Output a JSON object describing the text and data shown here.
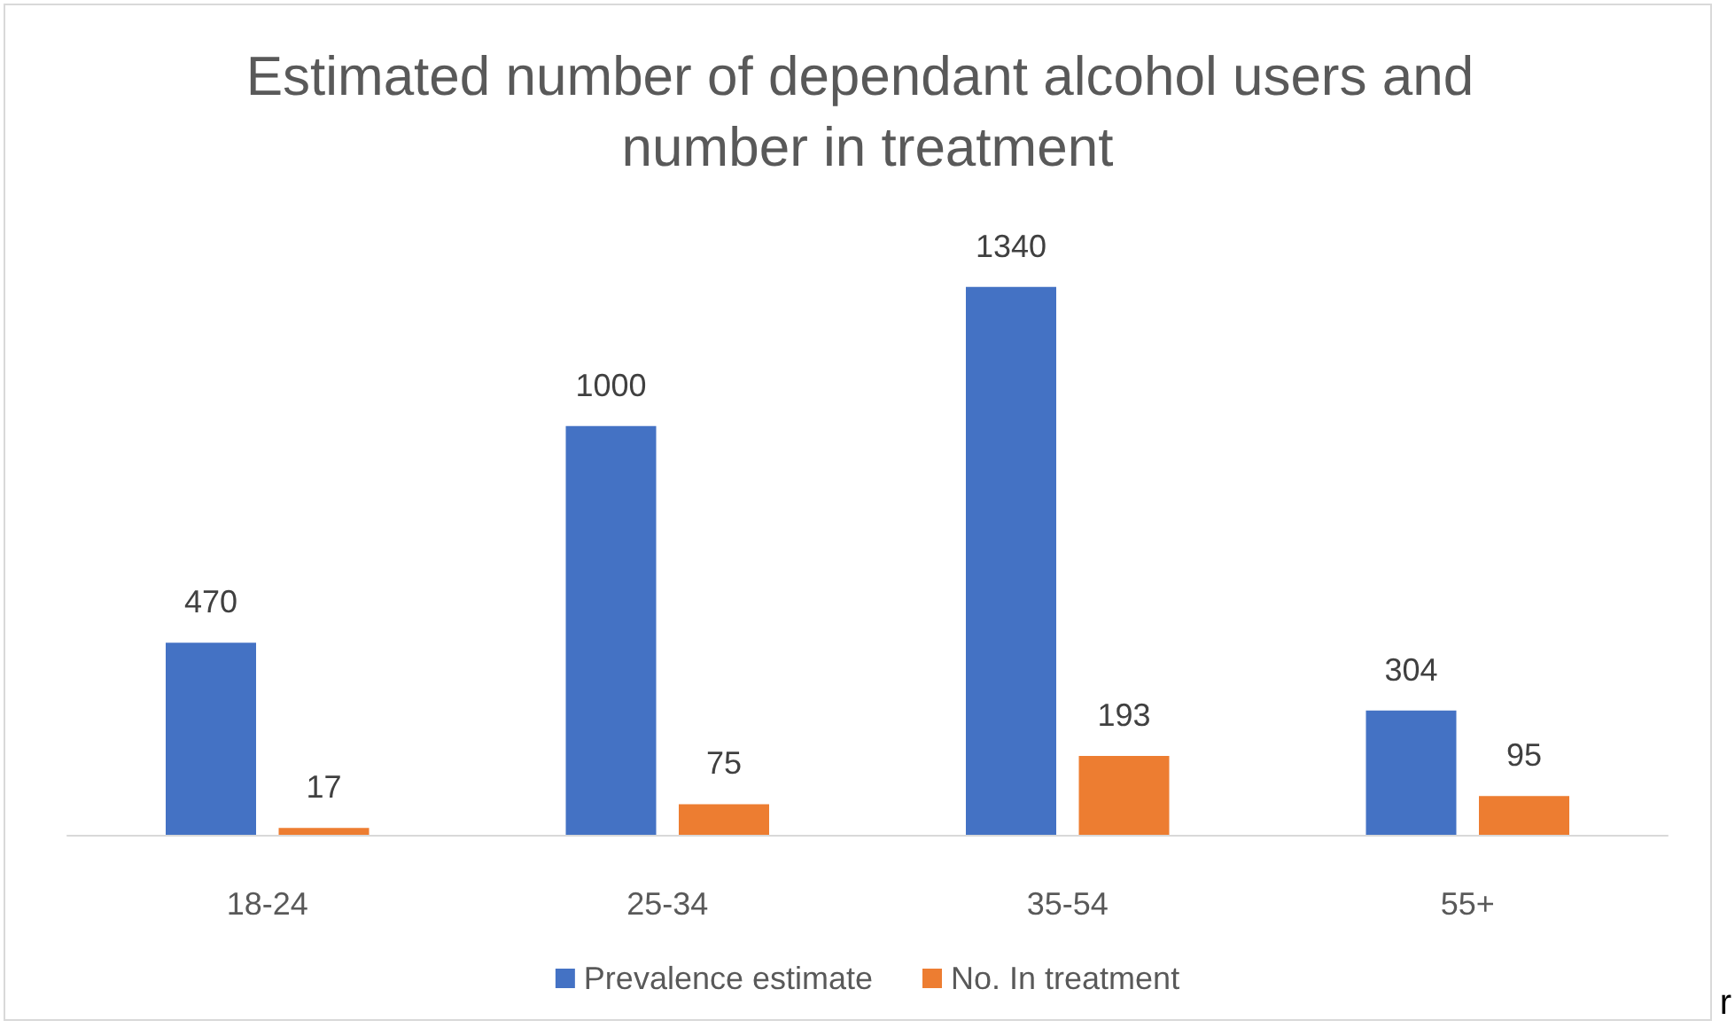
{
  "chart_data": {
    "type": "bar",
    "title": "Estimated number of dependant alcohol users and number in treatment",
    "categories": [
      "18-24",
      "25-34",
      "35-54",
      "55+"
    ],
    "series": [
      {
        "name": "Prevalence estimate",
        "color": "#4472c4",
        "values": [
          470,
          1000,
          1340,
          304
        ]
      },
      {
        "name": "No. In treatment",
        "color": "#ed7d31",
        "values": [
          17,
          75,
          193,
          95
        ]
      }
    ],
    "data_labels": true,
    "legend": "bottom",
    "tick_labels": "x",
    "annotations": [
      "r"
    ]
  }
}
